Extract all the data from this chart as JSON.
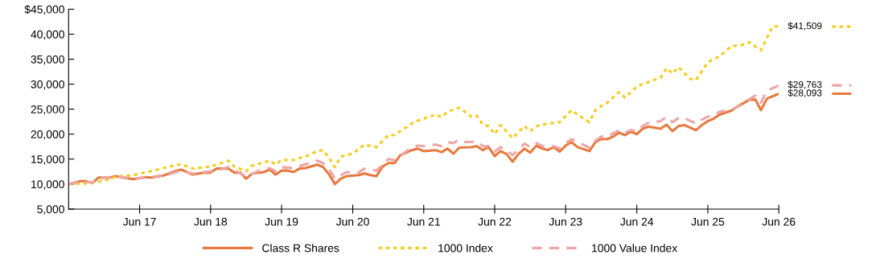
{
  "chart_data": {
    "type": "line",
    "xlim": [
      "2016-06",
      "2026-06"
    ],
    "xticks": [
      {
        "value": "2017-06",
        "label": "Jun 17"
      },
      {
        "value": "2018-06",
        "label": "Jun 18"
      },
      {
        "value": "2019-06",
        "label": "Jun 19"
      },
      {
        "value": "2020-06",
        "label": "Jun 20"
      },
      {
        "value": "2021-06",
        "label": "Jun 21"
      },
      {
        "value": "2022-06",
        "label": "Jun 22"
      },
      {
        "value": "2023-06",
        "label": "Jun 23"
      },
      {
        "value": "2024-06",
        "label": "Jun 24"
      },
      {
        "value": "2025-06",
        "label": "Jun 25"
      },
      {
        "value": "2026-06",
        "label": "Jun 26"
      }
    ],
    "ylim": [
      5000,
      45000
    ],
    "yticks": [
      {
        "value": 5000,
        "label": "5,000"
      },
      {
        "value": 10000,
        "label": "10,000"
      },
      {
        "value": 15000,
        "label": "15,000"
      },
      {
        "value": 20000,
        "label": "20,000"
      },
      {
        "value": 25000,
        "label": "25,000"
      },
      {
        "value": 30000,
        "label": "30,000"
      },
      {
        "value": 35000,
        "label": "35,000"
      },
      {
        "value": 40000,
        "label": "40,000"
      },
      {
        "value": 45000,
        "label": "$45,000"
      }
    ],
    "grid": false,
    "legend": "bottom",
    "marker": "none",
    "series": [
      {
        "name": "Class R Shares",
        "color": "#e8793e",
        "line_style": "solid",
        "x": [
          "2016-06",
          "2016-08",
          "2016-09",
          "2016-10",
          "2016-11",
          "2017-01",
          "2017-02",
          "2017-03",
          "2017-05",
          "2017-07",
          "2017-08",
          "2017-10",
          "2017-12",
          "2018-01",
          "2018-03",
          "2018-05",
          "2018-06",
          "2018-07",
          "2018-09",
          "2018-10",
          "2018-11",
          "2018-12",
          "2019-01",
          "2019-03",
          "2019-04",
          "2019-05",
          "2019-06",
          "2019-07",
          "2019-08",
          "2019-09",
          "2019-10",
          "2019-12",
          "2020-01",
          "2020-02",
          "2020-03",
          "2020-04",
          "2020-05",
          "2020-07",
          "2020-08",
          "2020-09",
          "2020-10",
          "2020-11",
          "2020-12",
          "2021-01",
          "2021-02",
          "2021-04",
          "2021-05",
          "2021-06",
          "2021-08",
          "2021-09",
          "2021-10",
          "2021-11",
          "2021-12",
          "2022-02",
          "2022-03",
          "2022-04",
          "2022-05",
          "2022-06",
          "2022-07",
          "2022-08",
          "2022-09",
          "2022-10",
          "2022-11",
          "2022-12",
          "2023-01",
          "2023-02",
          "2023-03",
          "2023-04",
          "2023-05",
          "2023-06",
          "2023-07",
          "2023-08",
          "2023-10",
          "2023-11",
          "2023-12",
          "2024-01",
          "2024-02",
          "2024-03",
          "2024-04",
          "2024-05",
          "2024-06",
          "2024-07",
          "2024-08",
          "2024-10",
          "2024-11",
          "2024-12",
          "2025-01",
          "2025-02",
          "2025-04",
          "2025-05",
          "2025-06",
          "2025-07",
          "2025-08",
          "2025-10",
          "2025-11",
          "2026-01",
          "2026-02",
          "2026-03",
          "2026-04",
          "2026-06"
        ],
        "values": [
          10000,
          10600,
          10600,
          10200,
          11300,
          11300,
          11600,
          11300,
          11000,
          11400,
          11300,
          11700,
          12600,
          12900,
          11900,
          12300,
          12300,
          13100,
          13100,
          12300,
          12300,
          11100,
          12100,
          12400,
          12900,
          11900,
          12700,
          12700,
          12400,
          13100,
          13200,
          13900,
          13400,
          11900,
          10000,
          11100,
          11600,
          11800,
          12100,
          11800,
          11600,
          13500,
          14200,
          14200,
          15800,
          16800,
          17100,
          16600,
          16800,
          16400,
          17100,
          16100,
          17300,
          17400,
          17600,
          16800,
          17400,
          15600,
          16600,
          16000,
          14500,
          16000,
          17100,
          16300,
          17700,
          17100,
          16800,
          17400,
          16500,
          17700,
          18400,
          17400,
          16600,
          18400,
          19000,
          19000,
          19500,
          20300,
          19800,
          20500,
          20000,
          21100,
          21500,
          21100,
          21900,
          20600,
          21600,
          21800,
          20800,
          21800,
          22600,
          23100,
          23900,
          24700,
          25500,
          26900,
          26900,
          24800,
          27100,
          28093
        ]
      },
      {
        "name": "1000 Index",
        "color": "#f5cc1c",
        "line_style": "dotted",
        "x": [
          "2016-06",
          "2016-10",
          "2017-01",
          "2017-02",
          "2017-05",
          "2017-08",
          "2017-11",
          "2018-01",
          "2018-03",
          "2018-06",
          "2018-09",
          "2018-10",
          "2018-12",
          "2019-01",
          "2019-04",
          "2019-05",
          "2019-06",
          "2019-08",
          "2019-09",
          "2019-10",
          "2019-12",
          "2020-01",
          "2020-02",
          "2020-03",
          "2020-04",
          "2020-06",
          "2020-08",
          "2020-10",
          "2020-12",
          "2021-01",
          "2021-04",
          "2021-05",
          "2021-08",
          "2021-09",
          "2021-10",
          "2021-12",
          "2022-02",
          "2022-03",
          "2022-04",
          "2022-05",
          "2022-06",
          "2022-07",
          "2022-09",
          "2022-11",
          "2022-12",
          "2023-01",
          "2023-03",
          "2023-05",
          "2023-07",
          "2023-08",
          "2023-10",
          "2023-11",
          "2023-12",
          "2024-01",
          "2024-03",
          "2024-04",
          "2024-06",
          "2024-07",
          "2024-10",
          "2024-11",
          "2024-12",
          "2025-01",
          "2025-03",
          "2025-04",
          "2025-06",
          "2025-08",
          "2025-10",
          "2025-12",
          "2026-01",
          "2026-03",
          "2026-05",
          "2026-06"
        ],
        "values": [
          10000,
          10200,
          11000,
          11500,
          11800,
          12600,
          13500,
          14000,
          13100,
          13500,
          14700,
          13500,
          12600,
          13700,
          14700,
          13900,
          14800,
          14800,
          15200,
          15500,
          16600,
          16800,
          15200,
          13400,
          15500,
          16100,
          17900,
          17400,
          19800,
          19800,
          22100,
          22700,
          23900,
          23400,
          24500,
          25300,
          23500,
          23700,
          21900,
          21600,
          20000,
          21800,
          19200,
          21600,
          20600,
          21600,
          22100,
          22400,
          24800,
          23900,
          22400,
          24800,
          25600,
          26300,
          28400,
          27300,
          29500,
          30000,
          31300,
          33200,
          32100,
          33400,
          31100,
          30800,
          34400,
          35600,
          37600,
          37900,
          38400,
          36800,
          41600,
          41509
        ]
      },
      {
        "name": "1000 Value Index",
        "color": "#eda5a5",
        "line_style": "dashed",
        "x": [
          "2016-06",
          "2016-08",
          "2016-10",
          "2016-11",
          "2017-02",
          "2017-05",
          "2017-08",
          "2017-11",
          "2018-01",
          "2018-03",
          "2018-07",
          "2018-09",
          "2018-10",
          "2018-12",
          "2019-02",
          "2019-04",
          "2019-05",
          "2019-06",
          "2019-08",
          "2019-12",
          "2020-01",
          "2020-02",
          "2020-03",
          "2020-05",
          "2020-07",
          "2020-08",
          "2020-10",
          "2020-12",
          "2021-01",
          "2021-04",
          "2021-05",
          "2021-06",
          "2021-08",
          "2021-09",
          "2021-10",
          "2021-11",
          "2021-12",
          "2022-01",
          "2022-03",
          "2022-04",
          "2022-05",
          "2022-06",
          "2022-07",
          "2022-08",
          "2022-09",
          "2022-11",
          "2022-12",
          "2023-01",
          "2023-02",
          "2023-04",
          "2023-05",
          "2023-06",
          "2023-07",
          "2023-08",
          "2023-10",
          "2023-11",
          "2023-12",
          "2024-01",
          "2024-03",
          "2024-04",
          "2024-05",
          "2024-06",
          "2024-07",
          "2024-08",
          "2024-10",
          "2024-11",
          "2024-12",
          "2025-01",
          "2025-02",
          "2025-04",
          "2025-05",
          "2025-06",
          "2025-07",
          "2025-08",
          "2025-10",
          "2025-11",
          "2026-02",
          "2026-03",
          "2026-04",
          "2026-06"
        ],
        "values": [
          10000,
          10600,
          10300,
          11200,
          11500,
          11100,
          11400,
          12000,
          12700,
          12100,
          12700,
          13400,
          12800,
          11500,
          12600,
          13200,
          12600,
          13400,
          13200,
          14700,
          14200,
          13000,
          11100,
          12400,
          12300,
          13100,
          12700,
          15000,
          14800,
          17400,
          17700,
          17600,
          17900,
          17600,
          18400,
          18200,
          18900,
          18400,
          18500,
          17600,
          17600,
          16500,
          17400,
          16800,
          15800,
          18100,
          17400,
          18200,
          17600,
          17600,
          17100,
          18200,
          19000,
          18400,
          17300,
          18700,
          19500,
          19500,
          20800,
          20300,
          20800,
          20600,
          21600,
          22300,
          22600,
          23500,
          22400,
          23200,
          23200,
          22100,
          22900,
          23500,
          23700,
          24500,
          24800,
          25600,
          27700,
          26300,
          28700,
          29763
        ]
      }
    ],
    "annotations": [
      {
        "text": "$41,509",
        "x": "2026-06",
        "y": 41509
      },
      {
        "text": "$29,763",
        "x": "2026-06",
        "y": 29763
      },
      {
        "text": "$28,093",
        "x": "2026-06",
        "y": 28093
      }
    ]
  }
}
